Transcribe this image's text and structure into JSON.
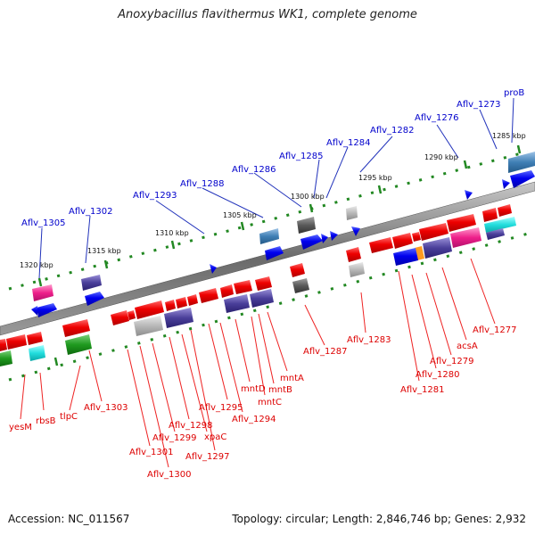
{
  "title": "Anoxybacillus flavithermus WK1, complete genome",
  "footer": {
    "accession": "Accession: NC_011567",
    "summary": "Topology: circular; Length: 2,846,746 bp; Genes: 2,932"
  },
  "colors": {
    "forward_label": "#0000cc",
    "reverse_label": "#dd0000",
    "backbone": "#777777",
    "tick": "#228822"
  },
  "kbp_marks": [
    "1285 kbp",
    "1290 kbp",
    "1295 kbp",
    "1300 kbp",
    "1305 kbp",
    "1310 kbp",
    "1315 kbp",
    "1320 kbp"
  ],
  "forward_genes": [
    "proB",
    "Aflv_1273",
    "Aflv_1276",
    "Aflv_1282",
    "Aflv_1284",
    "Aflv_1285",
    "Aflv_1286",
    "Aflv_1288",
    "Aflv_1293",
    "Aflv_1302",
    "Aflv_1305"
  ],
  "reverse_genes": [
    "Aflv_1277",
    "acsA",
    "Aflv_1279",
    "Aflv_1280",
    "Aflv_1281",
    "Aflv_1283",
    "Aflv_1287",
    "mntA",
    "mntB",
    "mntC",
    "mntD",
    "Aflv_1294",
    "Aflv_1295",
    "Aflv_1297",
    "xpaC",
    "Aflv_1298",
    "Aflv_1299",
    "Aflv_1300",
    "Aflv_1301",
    "Aflv_1303",
    "tlpC",
    "rbsB",
    "yesM"
  ]
}
